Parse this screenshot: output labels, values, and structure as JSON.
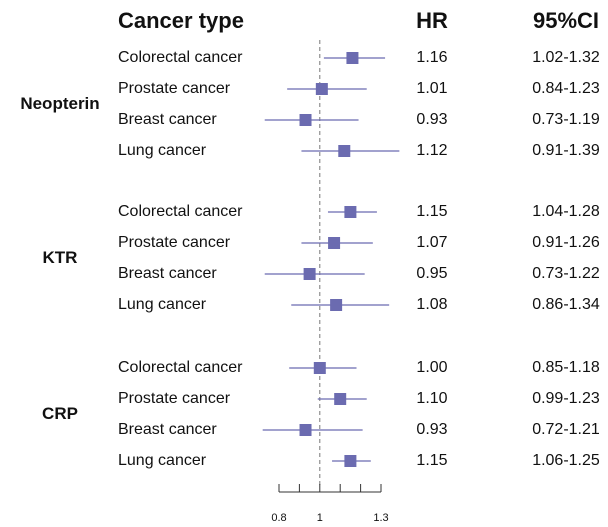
{
  "chart_data": {
    "type": "forest",
    "headers": {
      "label": "Cancer type",
      "hr": "HR",
      "ci": "95%CI"
    },
    "color": "#6b6bb0",
    "xlim": [
      0.8,
      1.3
    ],
    "xticks": [
      0.8,
      1,
      1.3
    ],
    "xminor": [
      0.9,
      1.1,
      1.2
    ],
    "reference": 1,
    "groups": [
      {
        "name": "Neopterin",
        "rows": [
          {
            "label": "Colorectal cancer",
            "hr": 1.16,
            "hr_label": "1.16",
            "lo": 1.02,
            "hi": 1.32,
            "ci_label": "1.02-1.32"
          },
          {
            "label": "Prostate cancer",
            "hr": 1.01,
            "hr_label": "1.01",
            "lo": 0.84,
            "hi": 1.23,
            "ci_label": "0.84-1.23"
          },
          {
            "label": "Breast cancer",
            "hr": 0.93,
            "hr_label": "0.93",
            "lo": 0.73,
            "hi": 1.19,
            "ci_label": "0.73-1.19"
          },
          {
            "label": "Lung cancer",
            "hr": 1.12,
            "hr_label": "1.12",
            "lo": 0.91,
            "hi": 1.39,
            "ci_label": "0.91-1.39"
          }
        ]
      },
      {
        "name": "KTR",
        "rows": [
          {
            "label": "Colorectal cancer",
            "hr": 1.15,
            "hr_label": "1.15",
            "lo": 1.04,
            "hi": 1.28,
            "ci_label": "1.04-1.28"
          },
          {
            "label": "Prostate cancer",
            "hr": 1.07,
            "hr_label": "1.07",
            "lo": 0.91,
            "hi": 1.26,
            "ci_label": "0.91-1.26"
          },
          {
            "label": "Breast cancer",
            "hr": 0.95,
            "hr_label": "0.95",
            "lo": 0.73,
            "hi": 1.22,
            "ci_label": "0.73-1.22"
          },
          {
            "label": "Lung cancer",
            "hr": 1.08,
            "hr_label": "1.08",
            "lo": 0.86,
            "hi": 1.34,
            "ci_label": "0.86-1.34"
          }
        ]
      },
      {
        "name": "CRP",
        "rows": [
          {
            "label": "Colorectal cancer",
            "hr": 1.0,
            "hr_label": "1.00",
            "lo": 0.85,
            "hi": 1.18,
            "ci_label": "0.85-1.18"
          },
          {
            "label": "Prostate cancer",
            "hr": 1.1,
            "hr_label": "1.10",
            "lo": 0.99,
            "hi": 1.23,
            "ci_label": "0.99-1.23"
          },
          {
            "label": "Breast cancer",
            "hr": 0.93,
            "hr_label": "0.93",
            "lo": 0.72,
            "hi": 1.21,
            "ci_label": "0.72-1.21"
          },
          {
            "label": "Lung cancer",
            "hr": 1.15,
            "hr_label": "1.15",
            "lo": 1.06,
            "hi": 1.25,
            "ci_label": "1.06-1.25"
          }
        ]
      }
    ]
  }
}
